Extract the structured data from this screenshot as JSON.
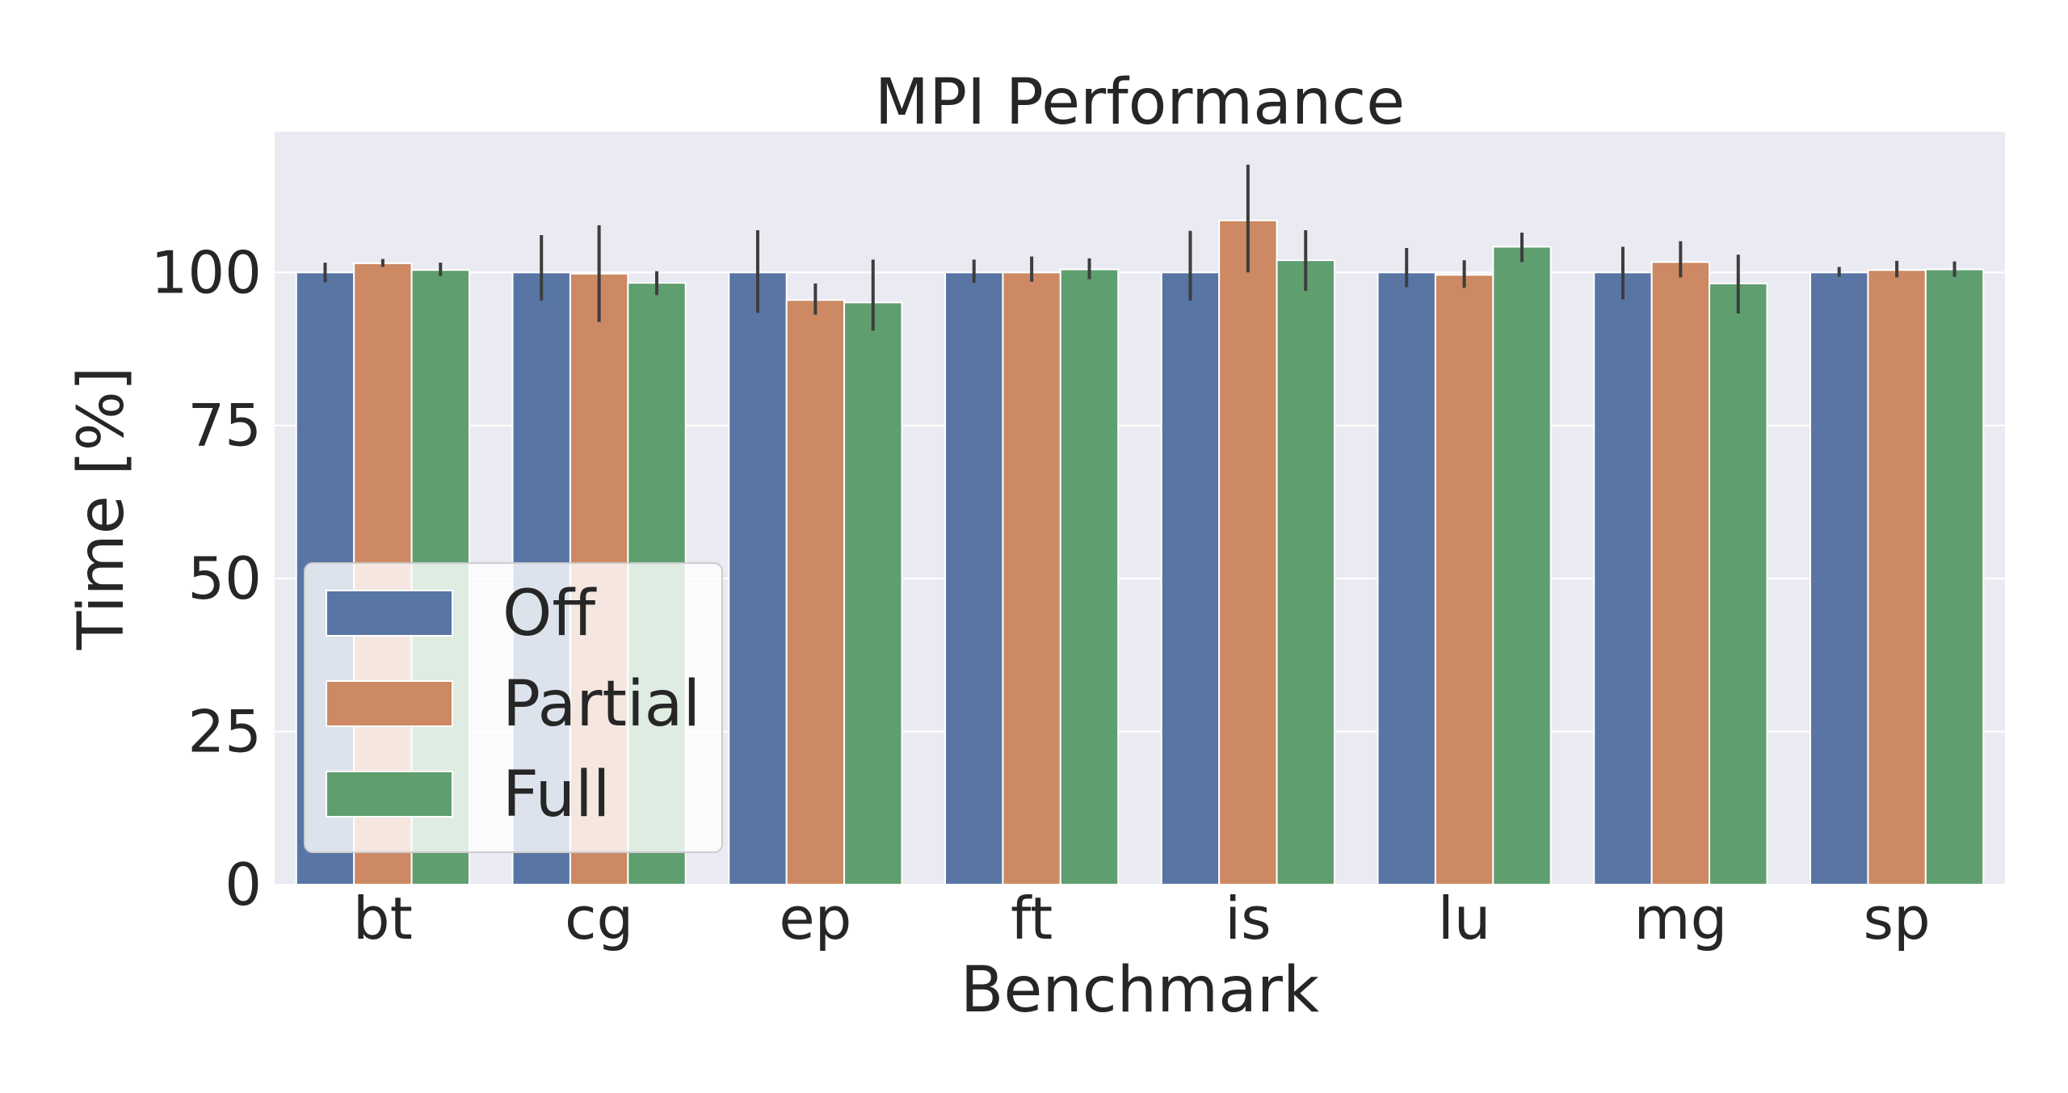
{
  "chart_data": {
    "type": "bar",
    "title": "MPI Performance",
    "xlabel": "Benchmark",
    "ylabel": "Time [%]",
    "categories": [
      "bt",
      "cg",
      "ep",
      "ft",
      "is",
      "lu",
      "mg",
      "sp"
    ],
    "ylim": [
      0,
      123
    ],
    "yticks": [
      "0",
      "25",
      "50",
      "75",
      "100"
    ],
    "grid": true,
    "legend_position": "lower-left",
    "series": [
      {
        "name": "Off",
        "color": "#5875a4",
        "values": [
          100,
          100,
          100,
          100,
          100,
          100,
          100,
          100
        ],
        "error_low": [
          98.4,
          95.4,
          93.4,
          98.3,
          95.4,
          97.6,
          95.6,
          99.3
        ],
        "error_high": [
          101.6,
          106.1,
          106.9,
          102.1,
          106.8,
          104.0,
          104.2,
          100.9
        ]
      },
      {
        "name": "Partial",
        "color": "#cc8963",
        "values": [
          101.5,
          99.8,
          95.5,
          100.0,
          108.5,
          99.6,
          101.7,
          100.4
        ],
        "error_low": [
          100.9,
          91.9,
          93.1,
          98.5,
          100.0,
          97.5,
          99.2,
          99.2
        ],
        "error_high": [
          102.2,
          107.7,
          98.2,
          102.6,
          117.6,
          102.0,
          105.1,
          101.9
        ]
      },
      {
        "name": "Full",
        "color": "#5f9e6e",
        "values": [
          100.4,
          98.3,
          95.1,
          100.5,
          102.0,
          104.2,
          98.2,
          100.5
        ],
        "error_low": [
          99.4,
          96.3,
          90.5,
          98.9,
          97.0,
          101.7,
          93.3,
          99.3
        ],
        "error_high": [
          101.6,
          100.2,
          102.1,
          102.3,
          106.9,
          106.5,
          102.9,
          101.8
        ]
      }
    ]
  }
}
